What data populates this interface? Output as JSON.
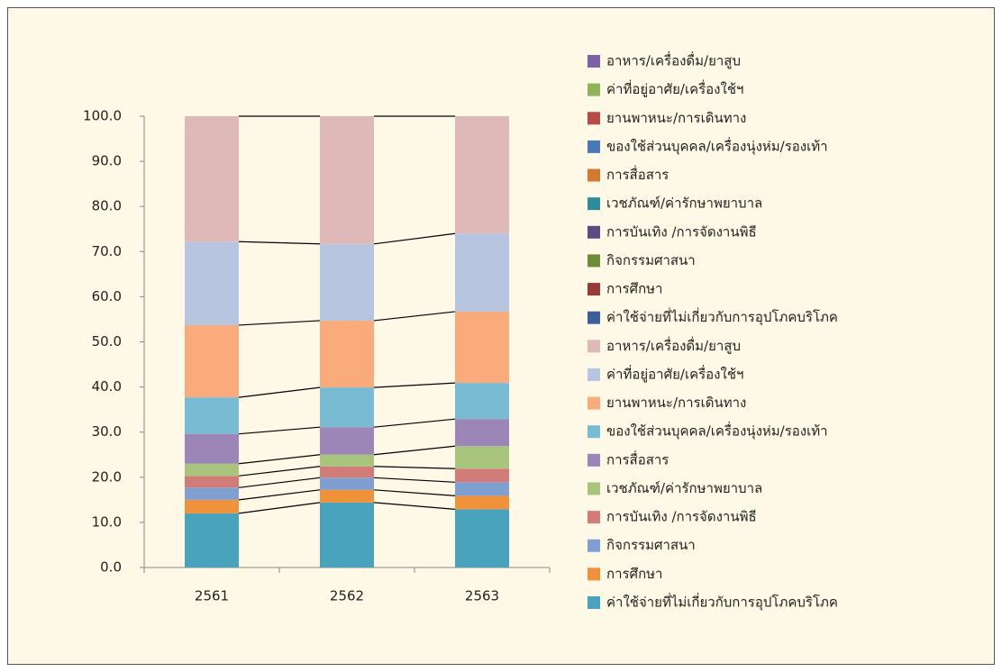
{
  "chart_data": {
    "type": "stacked_bar",
    "categories": [
      "2561",
      "2562",
      "2563"
    ],
    "series": [
      {
        "name": "ค่าใช้จ่ายที่ไม่เกี่ยวกับการอุปโภคบริโภค",
        "color": "#4aa3bd",
        "line_color": "#3a5f9a",
        "values": [
          12,
          14.4,
          12.9
        ]
      },
      {
        "name": "การศึกษา",
        "color": "#f0913c",
        "line_color": "#973a3a",
        "values": [
          3,
          2.8,
          3
        ]
      },
      {
        "name": "กิจกรรมศาสนา",
        "color": "#7f9fd0",
        "line_color": "#6e8b3a",
        "values": [
          2.7,
          2.7,
          3
        ]
      },
      {
        "name": "การบันเทิง /การจัดงานพิธี",
        "color": "#d27c7a",
        "line_color": "#5e4a82",
        "values": [
          2.6,
          2.5,
          3
        ]
      },
      {
        "name": "เวชภัณฑ์/ค่ารักษาพยาบาล",
        "color": "#a9c47d",
        "line_color": "#2f8a9a",
        "values": [
          2.7,
          2.6,
          5
        ]
      },
      {
        "name": "การสื่อสาร",
        "color": "#9c86b8",
        "line_color": "#d17a33",
        "values": [
          6.6,
          6.1,
          6
        ]
      },
      {
        "name": "ของใช้ส่วนบุคคล/เครื่องนุ่งห่ม/รองเท้า",
        "color": "#79bbd2",
        "line_color": "#4a78b8",
        "values": [
          8.1,
          8.8,
          8
        ]
      },
      {
        "name": "ยานพาหนะ/การเดินทาง",
        "color": "#f9ab7c",
        "line_color": "#b84a48",
        "values": [
          16,
          14.8,
          15.8
        ]
      },
      {
        "name": "ค่าที่อยู่อาศัย/เครื่องใช้ฯ",
        "color": "#b8c5e0",
        "line_color": "#8fb45a",
        "values": [
          18.5,
          17,
          17.3
        ]
      },
      {
        "name": "อาหาร/เครื่องดื่ม/ยาสูบ",
        "color": "#dfb8b8",
        "line_color": "#7e62a6",
        "values": [
          27.8,
          28.3,
          26
        ]
      }
    ],
    "ylim": [
      0,
      100
    ],
    "yticks": [
      {
        "value": 0,
        "label": "0.0"
      },
      {
        "value": 10,
        "label": "10.0"
      },
      {
        "value": 20,
        "label": "20.0"
      },
      {
        "value": 30,
        "label": "30.0"
      },
      {
        "value": 40,
        "label": "40.0"
      },
      {
        "value": 50,
        "label": "50.0"
      },
      {
        "value": 60,
        "label": "60.0"
      },
      {
        "value": 70,
        "label": "70.0"
      },
      {
        "value": 80,
        "label": "80.0"
      },
      {
        "value": 90,
        "label": "90.0"
      },
      {
        "value": 100,
        "label": "100.0"
      }
    ],
    "series_lines": true,
    "legend": "right"
  }
}
